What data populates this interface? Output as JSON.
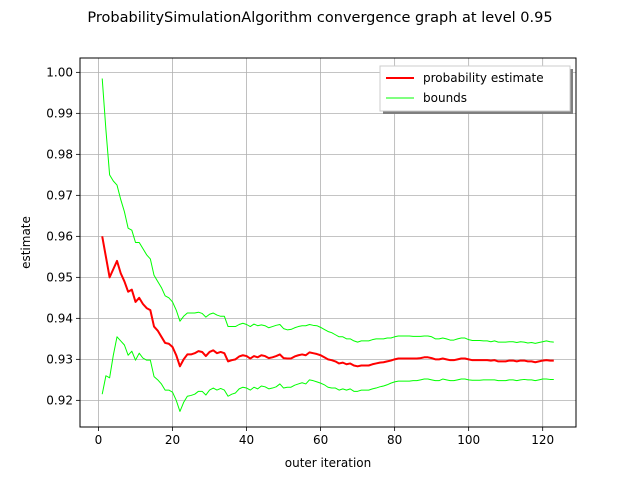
{
  "chart_data": {
    "type": "line",
    "title": "ProbabilitySimulationAlgorithm convergence graph at level 0.95",
    "xlabel": "outer iteration",
    "ylabel": "estimate",
    "xlim": [
      -5,
      129
    ],
    "ylim": [
      0.9135,
      1.0035
    ],
    "xticks": [
      0,
      20,
      40,
      60,
      80,
      100,
      120
    ],
    "xtick_labels": [
      "0",
      "20",
      "40",
      "60",
      "80",
      "100",
      "120"
    ],
    "yticks": [
      0.92,
      0.93,
      0.94,
      0.95,
      0.96,
      0.97,
      0.98,
      0.99,
      1.0
    ],
    "ytick_labels": [
      "0.92",
      "0.93",
      "0.94",
      "0.95",
      "0.96",
      "0.97",
      "0.98",
      "0.99",
      "1.00"
    ],
    "grid": true,
    "legend_position": "top-right",
    "series": [
      {
        "name": "probability estimate",
        "color": "#ff0000",
        "width": 2,
        "x": [
          1,
          2,
          3,
          4,
          5,
          6,
          7,
          8,
          9,
          10,
          11,
          12,
          13,
          14,
          15,
          16,
          17,
          18,
          19,
          20,
          21,
          22,
          23,
          24,
          25,
          26,
          27,
          28,
          29,
          30,
          31,
          32,
          33,
          34,
          35,
          36,
          37,
          38,
          39,
          40,
          41,
          42,
          43,
          44,
          45,
          46,
          47,
          48,
          49,
          50,
          51,
          52,
          53,
          54,
          55,
          56,
          57,
          58,
          59,
          60,
          61,
          62,
          63,
          64,
          65,
          66,
          67,
          68,
          69,
          70,
          71,
          72,
          73,
          74,
          75,
          76,
          77,
          78,
          79,
          80,
          81,
          82,
          83,
          84,
          85,
          86,
          87,
          88,
          89,
          90,
          91,
          92,
          93,
          94,
          95,
          96,
          97,
          98,
          99,
          100,
          101,
          102,
          103,
          104,
          105,
          106,
          107,
          108,
          109,
          110,
          111,
          112,
          113,
          114,
          115,
          116,
          117,
          118,
          119,
          120,
          121,
          122,
          123
        ],
        "y": [
          0.96,
          0.955,
          0.95,
          0.952,
          0.954,
          0.951,
          0.949,
          0.9465,
          0.947,
          0.944,
          0.945,
          0.9435,
          0.9425,
          0.942,
          0.938,
          0.937,
          0.9355,
          0.934,
          0.9338,
          0.933,
          0.931,
          0.9283,
          0.93,
          0.9312,
          0.9312,
          0.9315,
          0.932,
          0.9318,
          0.9308,
          0.9318,
          0.9322,
          0.9315,
          0.9318,
          0.9315,
          0.9295,
          0.9298,
          0.93,
          0.9307,
          0.931,
          0.9308,
          0.9302,
          0.9308,
          0.9305,
          0.931,
          0.9308,
          0.9303,
          0.9305,
          0.9308,
          0.9312,
          0.9303,
          0.9302,
          0.9302,
          0.9307,
          0.931,
          0.9312,
          0.931,
          0.9317,
          0.9315,
          0.9313,
          0.931,
          0.9305,
          0.93,
          0.9298,
          0.9295,
          0.929,
          0.9292,
          0.9288,
          0.929,
          0.9285,
          0.9283,
          0.9285,
          0.9285,
          0.9285,
          0.9288,
          0.929,
          0.9292,
          0.9293,
          0.9295,
          0.9297,
          0.93,
          0.9302,
          0.9302,
          0.9302,
          0.9302,
          0.9302,
          0.9302,
          0.9303,
          0.9305,
          0.9305,
          0.9303,
          0.93,
          0.93,
          0.9302,
          0.93,
          0.9298,
          0.9298,
          0.93,
          0.9302,
          0.9302,
          0.93,
          0.9298,
          0.9298,
          0.9298,
          0.9298,
          0.9298,
          0.9297,
          0.9298,
          0.9295,
          0.9295,
          0.9295,
          0.9297,
          0.9297,
          0.9295,
          0.9297,
          0.9297,
          0.9295,
          0.9295,
          0.9293,
          0.9295,
          0.9297,
          0.9298,
          0.9297,
          0.9297
        ]
      },
      {
        "name": "bounds",
        "color": "#00ff00",
        "width": 1,
        "x": [
          1,
          2,
          3,
          4,
          5,
          6,
          7,
          8,
          9,
          10,
          11,
          12,
          13,
          14,
          15,
          16,
          17,
          18,
          19,
          20,
          21,
          22,
          23,
          24,
          25,
          26,
          27,
          28,
          29,
          30,
          31,
          32,
          33,
          34,
          35,
          36,
          37,
          38,
          39,
          40,
          41,
          42,
          43,
          44,
          45,
          46,
          47,
          48,
          49,
          50,
          51,
          52,
          53,
          54,
          55,
          56,
          57,
          58,
          59,
          60,
          61,
          62,
          63,
          64,
          65,
          66,
          67,
          68,
          69,
          70,
          71,
          72,
          73,
          74,
          75,
          76,
          77,
          78,
          79,
          80,
          81,
          82,
          83,
          84,
          85,
          86,
          87,
          88,
          89,
          90,
          91,
          92,
          93,
          94,
          95,
          96,
          97,
          98,
          99,
          100,
          101,
          102,
          103,
          104,
          105,
          106,
          107,
          108,
          109,
          110,
          111,
          112,
          113,
          114,
          115,
          116,
          117,
          118,
          119,
          120,
          121,
          122,
          123
        ],
        "y": [
          0.9985,
          0.986,
          0.975,
          0.9735,
          0.9725,
          0.969,
          0.966,
          0.962,
          0.9615,
          0.9585,
          0.9585,
          0.957,
          0.9555,
          0.9545,
          0.9505,
          0.949,
          0.9475,
          0.9455,
          0.945,
          0.944,
          0.942,
          0.9393,
          0.9405,
          0.9413,
          0.9413,
          0.9413,
          0.9415,
          0.9412,
          0.9403,
          0.941,
          0.9413,
          0.9408,
          0.9405,
          0.9405,
          0.938,
          0.938,
          0.938,
          0.9385,
          0.9388,
          0.9385,
          0.938,
          0.9386,
          0.9382,
          0.9384,
          0.9382,
          0.9377,
          0.938,
          0.9383,
          0.9385,
          0.9375,
          0.9372,
          0.9373,
          0.9377,
          0.938,
          0.9382,
          0.9382,
          0.9385,
          0.9383,
          0.9382,
          0.9378,
          0.9373,
          0.9368,
          0.9365,
          0.936,
          0.9355,
          0.9355,
          0.935,
          0.935,
          0.9345,
          0.9342,
          0.9345,
          0.9345,
          0.9345,
          0.9348,
          0.935,
          0.935,
          0.935,
          0.9352,
          0.9352,
          0.9355,
          0.9357,
          0.9357,
          0.9357,
          0.9357,
          0.9356,
          0.9356,
          0.9356,
          0.9357,
          0.9357,
          0.9355,
          0.935,
          0.935,
          0.9352,
          0.935,
          0.9347,
          0.9347,
          0.935,
          0.9352,
          0.9352,
          0.9348,
          0.9346,
          0.9346,
          0.9346,
          0.9345,
          0.9345,
          0.9343,
          0.9345,
          0.9342,
          0.9342,
          0.9342,
          0.9343,
          0.9343,
          0.9341,
          0.9343,
          0.9342,
          0.934,
          0.9341,
          0.9339,
          0.9341,
          0.9343,
          0.9345,
          0.9343,
          0.9342
        ],
        "y_lower": [
          0.9215,
          0.926,
          0.9255,
          0.931,
          0.9355,
          0.9345,
          0.9335,
          0.931,
          0.932,
          0.9298,
          0.9315,
          0.9303,
          0.9298,
          0.9298,
          0.9258,
          0.925,
          0.924,
          0.9225,
          0.9225,
          0.922,
          0.92,
          0.9173,
          0.9195,
          0.921,
          0.9212,
          0.9215,
          0.9222,
          0.9222,
          0.9213,
          0.9225,
          0.923,
          0.9225,
          0.9229,
          0.9225,
          0.921,
          0.9215,
          0.9218,
          0.9228,
          0.9232,
          0.923,
          0.9225,
          0.9232,
          0.9228,
          0.9235,
          0.9233,
          0.9228,
          0.923,
          0.9233,
          0.924,
          0.923,
          0.9232,
          0.9232,
          0.9237,
          0.924,
          0.9243,
          0.924,
          0.925,
          0.9248,
          0.9245,
          0.9242,
          0.9238,
          0.9232,
          0.923,
          0.923,
          0.9225,
          0.9228,
          0.9225,
          0.9228,
          0.9222,
          0.9222,
          0.9225,
          0.9225,
          0.9225,
          0.9228,
          0.923,
          0.9233,
          0.9235,
          0.9238,
          0.9242,
          0.9245,
          0.9247,
          0.9247,
          0.9247,
          0.9247,
          0.9248,
          0.9248,
          0.925,
          0.9252,
          0.9252,
          0.925,
          0.9248,
          0.9248,
          0.9252,
          0.925,
          0.9248,
          0.9248,
          0.925,
          0.9252,
          0.9252,
          0.925,
          0.9249,
          0.9249,
          0.9249,
          0.925,
          0.925,
          0.925,
          0.925,
          0.9248,
          0.9248,
          0.9248,
          0.925,
          0.925,
          0.9248,
          0.925,
          0.9251,
          0.925,
          0.925,
          0.9248,
          0.925,
          0.9252,
          0.9252,
          0.9251,
          0.9251
        ]
      }
    ]
  }
}
